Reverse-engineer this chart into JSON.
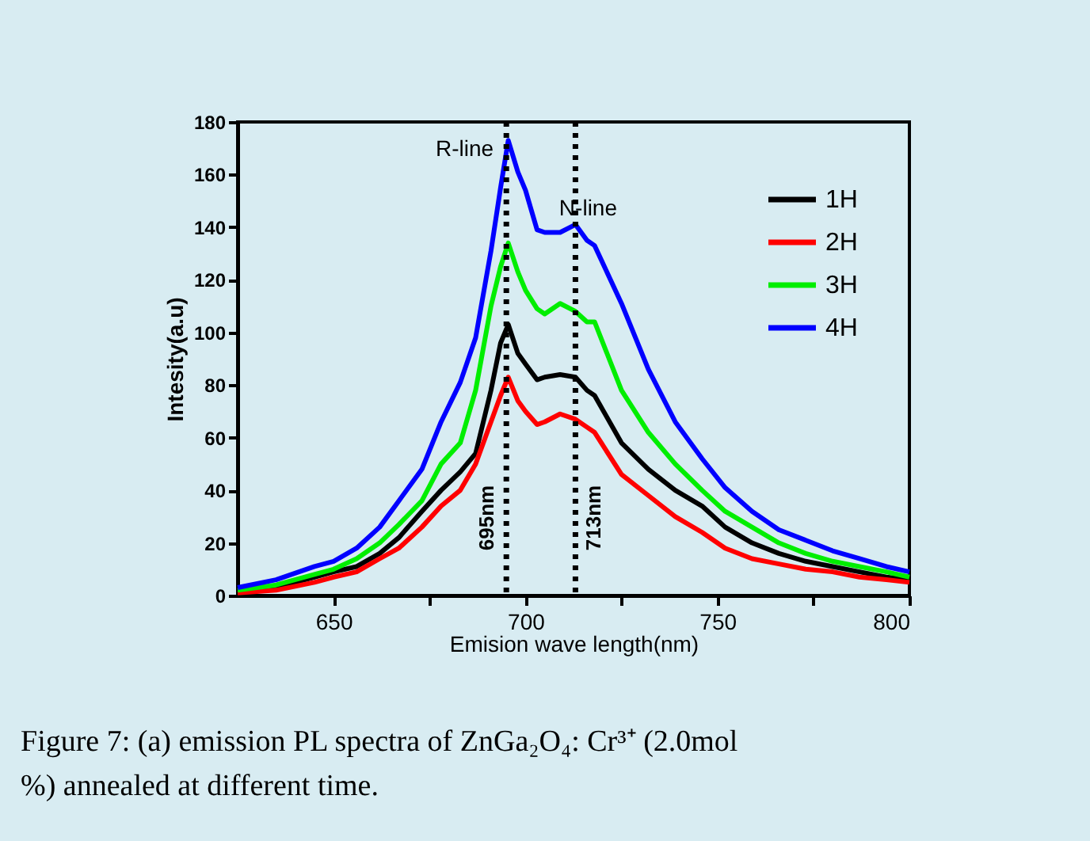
{
  "chart_data": {
    "type": "line",
    "xlabel": "Emision wave length(nm)",
    "ylabel": "Intesity(a.u)",
    "x": [
      625,
      635,
      645,
      650,
      656,
      662,
      667,
      673,
      678,
      683,
      687,
      691,
      693.5,
      695.5,
      698,
      700,
      703,
      705,
      709,
      713,
      716,
      718,
      725,
      732,
      739,
      746,
      752,
      759,
      766,
      773,
      780,
      787,
      794,
      800
    ],
    "series": [
      {
        "name": "1H",
        "color": "#000000",
        "values": [
          1,
          3,
          7,
          9,
          11,
          16,
          22,
          32,
          40,
          47,
          54,
          78,
          96,
          103,
          92,
          88,
          82,
          83,
          84,
          83,
          78,
          76,
          58,
          48,
          40,
          34,
          26,
          20,
          16,
          13,
          11,
          9,
          7,
          6
        ]
      },
      {
        "name": "2H",
        "color": "#ff0000",
        "values": [
          1,
          2,
          5,
          7,
          9,
          14,
          18,
          26,
          34,
          40,
          50,
          66,
          76,
          83,
          74,
          70,
          65,
          66,
          69,
          67,
          64,
          62,
          46,
          38,
          30,
          24,
          18,
          14,
          12,
          10,
          9,
          7,
          6,
          5
        ]
      },
      {
        "name": "3H",
        "color": "#00ee00",
        "values": [
          2,
          4,
          8,
          10,
          14,
          20,
          27,
          36,
          50,
          58,
          78,
          110,
          125,
          134,
          123,
          116,
          109,
          107,
          111,
          108,
          104,
          104,
          78,
          62,
          50,
          40,
          32,
          26,
          20,
          16,
          13,
          11,
          9,
          7
        ]
      },
      {
        "name": "4H",
        "color": "#0000ff",
        "values": [
          3,
          6,
          11,
          13,
          18,
          26,
          36,
          48,
          66,
          81,
          98,
          131,
          155,
          173,
          161,
          154,
          139,
          138,
          138,
          141,
          135,
          133,
          111,
          86,
          66,
          52,
          41,
          32,
          25,
          21,
          17,
          14,
          11,
          9
        ]
      }
    ],
    "xlim": [
      625,
      800
    ],
    "xticks": [
      650,
      {
        "value": 675,
        "label": null
      },
      700,
      {
        "value": 725,
        "label": null
      },
      750,
      {
        "value": 775,
        "label": null
      },
      800
    ],
    "ylim": [
      0,
      180
    ],
    "yticks": [
      0,
      20,
      40,
      60,
      80,
      100,
      120,
      140,
      160,
      180
    ],
    "grid": false,
    "legend": "top right",
    "line_style": "solid",
    "ref_lines": [
      {
        "axis": "x",
        "value": 695,
        "label": "695nm",
        "color": "#000000",
        "line_style": "dotted"
      },
      {
        "axis": "x",
        "value": 713,
        "label": "713nm",
        "color": "#000000",
        "line_style": "dotted"
      }
    ],
    "annotations": [
      {
        "text": "R-line",
        "x": 695,
        "y": 173
      },
      {
        "text": "N-line",
        "x": 713,
        "y": 141
      },
      "Figure 7: (a) emission PL spectra of ZnGa₂O₄: Cr³⁺ (2.0mol %) annealed at different time."
    ]
  }
}
